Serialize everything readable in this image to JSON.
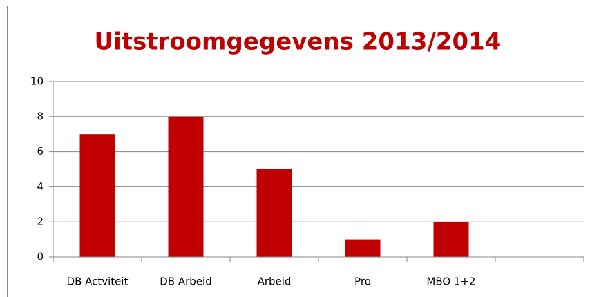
{
  "chart_data": {
    "type": "bar",
    "title": "Uitstroomgegevens 2013/2014",
    "categories": [
      "DB Actviteit",
      "DB Arbeid",
      "Arbeid",
      "Pro",
      "MBO 1+2",
      null
    ],
    "values": [
      7,
      8,
      5,
      1,
      2,
      null
    ],
    "color": "#c00000",
    "ylim": [
      0,
      10
    ],
    "yticks": [
      0,
      2,
      4,
      6,
      8,
      10
    ],
    "grid": true
  }
}
